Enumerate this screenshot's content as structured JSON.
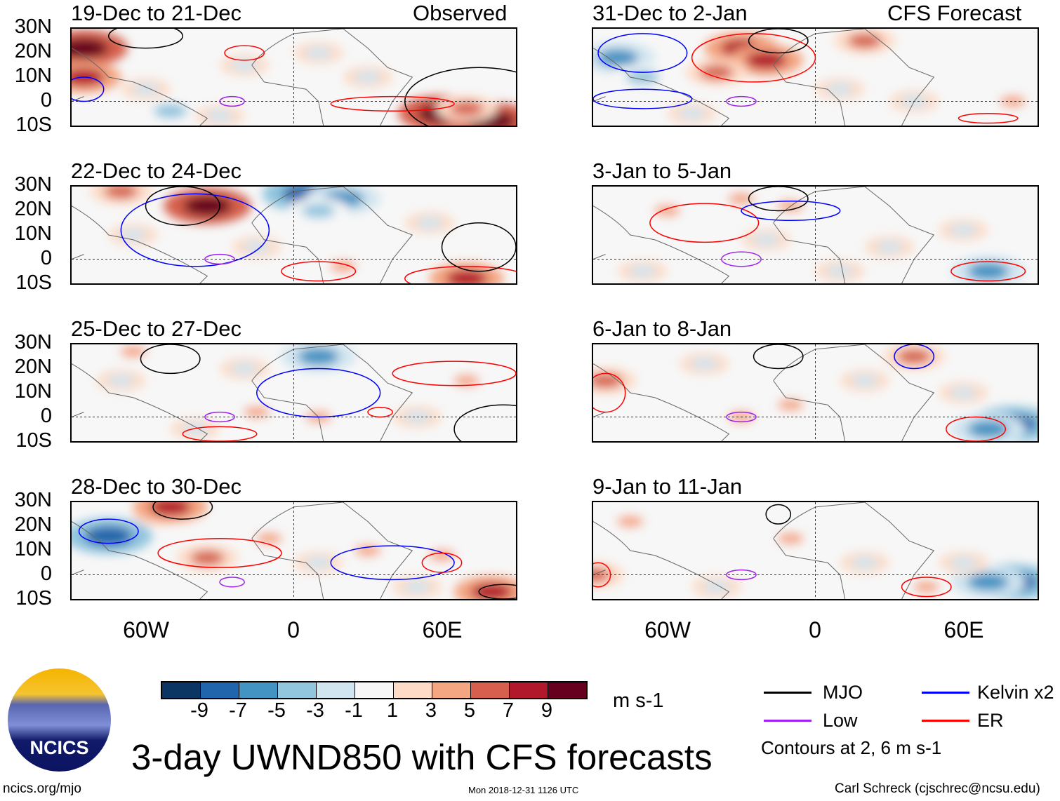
{
  "title": "3-day UWND850 with CFS forecasts",
  "column_labels": {
    "observed": "Observed",
    "forecast": "CFS Forecast"
  },
  "lat_labels": [
    "30N",
    "20N",
    "10N",
    "0",
    "10S"
  ],
  "lon_labels": [
    "60W",
    "0",
    "60E"
  ],
  "colorbar": {
    "labels": [
      "-9",
      "-7",
      "-5",
      "-3",
      "-1",
      "1",
      "3",
      "5",
      "7",
      "9"
    ],
    "colors": [
      "#0b3563",
      "#2166ac",
      "#4393c3",
      "#92c5de",
      "#d1e5f0",
      "#f7f7f7",
      "#fddbc7",
      "#f4a582",
      "#d6604d",
      "#b2182b",
      "#67001f"
    ],
    "units": "m s-1"
  },
  "legend": {
    "items": [
      {
        "label": "MJO",
        "color": "#000000"
      },
      {
        "label": "Kelvin x2",
        "color": "#0000ff"
      },
      {
        "label": "Low",
        "color": "#a020f0"
      },
      {
        "label": "ER",
        "color": "#ff0000"
      }
    ],
    "note": "Contours at 2, 6 m s-1"
  },
  "footer": {
    "url": "ncics.org/mjo",
    "timestamp": "Mon 2018-12-31 1126 UTC",
    "author": "Carl Schreck (cjschrec@ncsu.edu)",
    "logo_text": "NCICS"
  },
  "panels": [
    {
      "title": "19-Dec to 21-Dec",
      "fill": [
        [
          -85,
          22,
          9
        ],
        [
          -85,
          10,
          7
        ],
        [
          -50,
          -4,
          -5
        ],
        [
          -30,
          -6,
          -3
        ],
        [
          10,
          20,
          -3
        ],
        [
          -20,
          15,
          -3
        ],
        [
          60,
          -5,
          9
        ],
        [
          80,
          -8,
          9
        ],
        [
          70,
          -3,
          5
        ],
        [
          -60,
          5,
          -3
        ],
        [
          30,
          10,
          -3
        ]
      ],
      "contours": [
        [
          -60,
          27,
          15,
          5,
          "#000000"
        ],
        [
          75,
          0,
          30,
          14,
          "#000000"
        ],
        [
          -20,
          20,
          8,
          3,
          "#ff0000"
        ],
        [
          40,
          -1,
          25,
          3,
          "#ff0000"
        ],
        [
          -25,
          0,
          5,
          2,
          "#a020f0"
        ],
        [
          -85,
          5,
          8,
          5,
          "#0000ff"
        ]
      ]
    },
    {
      "title": "22-Dec to 24-Dec",
      "fill": [
        [
          -35,
          22,
          9
        ],
        [
          -70,
          28,
          5
        ],
        [
          5,
          27,
          -9
        ],
        [
          20,
          25,
          -7
        ],
        [
          10,
          20,
          -5
        ],
        [
          70,
          -8,
          7
        ],
        [
          -65,
          10,
          -3
        ],
        [
          -15,
          5,
          -3
        ],
        [
          55,
          15,
          -3
        ],
        [
          20,
          -3,
          3
        ]
      ],
      "contours": [
        [
          -45,
          22,
          15,
          8,
          "#000000"
        ],
        [
          -40,
          12,
          30,
          15,
          "#0000ff"
        ],
        [
          10,
          -5,
          15,
          4,
          "#ff0000"
        ],
        [
          70,
          -8,
          25,
          5,
          "#ff0000"
        ],
        [
          75,
          5,
          15,
          10,
          "#000000"
        ],
        [
          -30,
          0,
          6,
          2,
          "#a020f0"
        ]
      ]
    },
    {
      "title": "25-Dec to 27-Dec",
      "fill": [
        [
          10,
          25,
          -7
        ],
        [
          -20,
          20,
          -3
        ],
        [
          -70,
          15,
          -3
        ],
        [
          -15,
          2,
          3
        ],
        [
          10,
          0,
          3
        ],
        [
          70,
          15,
          3
        ],
        [
          -65,
          27,
          3
        ],
        [
          50,
          0,
          -3
        ],
        [
          -40,
          -5,
          -3
        ]
      ],
      "contours": [
        [
          -50,
          24,
          12,
          6,
          "#000000"
        ],
        [
          10,
          10,
          25,
          10,
          "#0000ff"
        ],
        [
          65,
          18,
          25,
          5,
          "#ff0000"
        ],
        [
          -30,
          -7,
          15,
          3,
          "#ff0000"
        ],
        [
          85,
          -5,
          20,
          10,
          "#000000"
        ],
        [
          -30,
          0,
          6,
          2,
          "#a020f0"
        ],
        [
          35,
          2,
          5,
          2,
          "#ff0000"
        ]
      ]
    },
    {
      "title": "28-Dec to 30-Dec",
      "fill": [
        [
          -75,
          16,
          -9
        ],
        [
          -55,
          25,
          -3
        ],
        [
          -50,
          28,
          7
        ],
        [
          -35,
          7,
          5
        ],
        [
          -10,
          15,
          3
        ],
        [
          30,
          10,
          3
        ],
        [
          60,
          8,
          3
        ],
        [
          80,
          -7,
          7
        ],
        [
          10,
          5,
          -3
        ],
        [
          50,
          -5,
          -3
        ]
      ],
      "contours": [
        [
          -30,
          9,
          25,
          6,
          "#ff0000"
        ],
        [
          40,
          5,
          25,
          7,
          "#0000ff"
        ],
        [
          -45,
          28,
          12,
          5,
          "#000000"
        ],
        [
          60,
          5,
          8,
          4,
          "#ff0000"
        ],
        [
          -75,
          18,
          12,
          5,
          "#0000ff"
        ],
        [
          85,
          -7,
          10,
          3,
          "#000000"
        ],
        [
          -25,
          -3,
          5,
          2,
          "#a020f0"
        ]
      ]
    },
    {
      "title": "31-Dec to 2-Jan",
      "fill": [
        [
          -30,
          22,
          7
        ],
        [
          -20,
          17,
          7
        ],
        [
          -40,
          12,
          5
        ],
        [
          20,
          25,
          5
        ],
        [
          -80,
          18,
          -7
        ],
        [
          -70,
          10,
          -5
        ],
        [
          10,
          5,
          -3
        ],
        [
          40,
          0,
          -3
        ],
        [
          -50,
          -5,
          -3
        ],
        [
          80,
          0,
          3
        ]
      ],
      "contours": [
        [
          -25,
          18,
          25,
          10,
          "#ff0000"
        ],
        [
          -70,
          20,
          18,
          8,
          "#0000ff"
        ],
        [
          -15,
          25,
          12,
          5,
          "#000000"
        ],
        [
          -30,
          0,
          6,
          2,
          "#a020f0"
        ],
        [
          -70,
          1,
          20,
          4,
          "#0000ff"
        ],
        [
          70,
          -7,
          12,
          2,
          "#ff0000"
        ]
      ]
    },
    {
      "title": "3-Jan to 5-Jan",
      "fill": [
        [
          -30,
          25,
          3
        ],
        [
          -10,
          22,
          3
        ],
        [
          -20,
          8,
          -3
        ],
        [
          70,
          -5,
          -7
        ],
        [
          30,
          5,
          -3
        ],
        [
          -70,
          -5,
          -3
        ],
        [
          60,
          12,
          -3
        ],
        [
          10,
          -5,
          -3
        ],
        [
          -60,
          20,
          3
        ]
      ],
      "contours": [
        [
          -45,
          15,
          22,
          8,
          "#ff0000"
        ],
        [
          70,
          -5,
          15,
          4,
          "#ff0000"
        ],
        [
          -15,
          25,
          12,
          5,
          "#000000"
        ],
        [
          -30,
          0,
          8,
          3,
          "#a020f0"
        ],
        [
          -10,
          20,
          20,
          4,
          "#0000ff"
        ]
      ]
    },
    {
      "title": "6-Jan to 8-Jan",
      "fill": [
        [
          80,
          -3,
          -9
        ],
        [
          70,
          -5,
          -7
        ],
        [
          -45,
          22,
          -3
        ],
        [
          -85,
          15,
          5
        ],
        [
          40,
          25,
          5
        ],
        [
          -10,
          5,
          3
        ],
        [
          20,
          15,
          -3
        ],
        [
          -30,
          0,
          3
        ],
        [
          60,
          10,
          -3
        ]
      ],
      "contours": [
        [
          65,
          -5,
          12,
          5,
          "#ff0000"
        ],
        [
          -85,
          10,
          8,
          8,
          "#ff0000"
        ],
        [
          -15,
          25,
          10,
          5,
          "#000000"
        ],
        [
          40,
          25,
          8,
          5,
          "#0000ff"
        ],
        [
          -30,
          0,
          6,
          2,
          "#a020f0"
        ]
      ]
    },
    {
      "title": "9-Jan to 11-Jan",
      "fill": [
        [
          80,
          -3,
          -9
        ],
        [
          70,
          -3,
          -7
        ],
        [
          60,
          5,
          -3
        ],
        [
          -90,
          0,
          5
        ],
        [
          -75,
          22,
          3
        ],
        [
          -10,
          15,
          3
        ],
        [
          45,
          -5,
          3
        ],
        [
          20,
          5,
          -3
        ],
        [
          -40,
          -5,
          -3
        ]
      ],
      "contours": [
        [
          45,
          -5,
          10,
          4,
          "#ff0000"
        ],
        [
          -15,
          25,
          5,
          4,
          "#000000"
        ],
        [
          -30,
          0,
          6,
          2,
          "#a020f0"
        ],
        [
          -88,
          0,
          5,
          5,
          "#ff0000"
        ]
      ]
    }
  ]
}
